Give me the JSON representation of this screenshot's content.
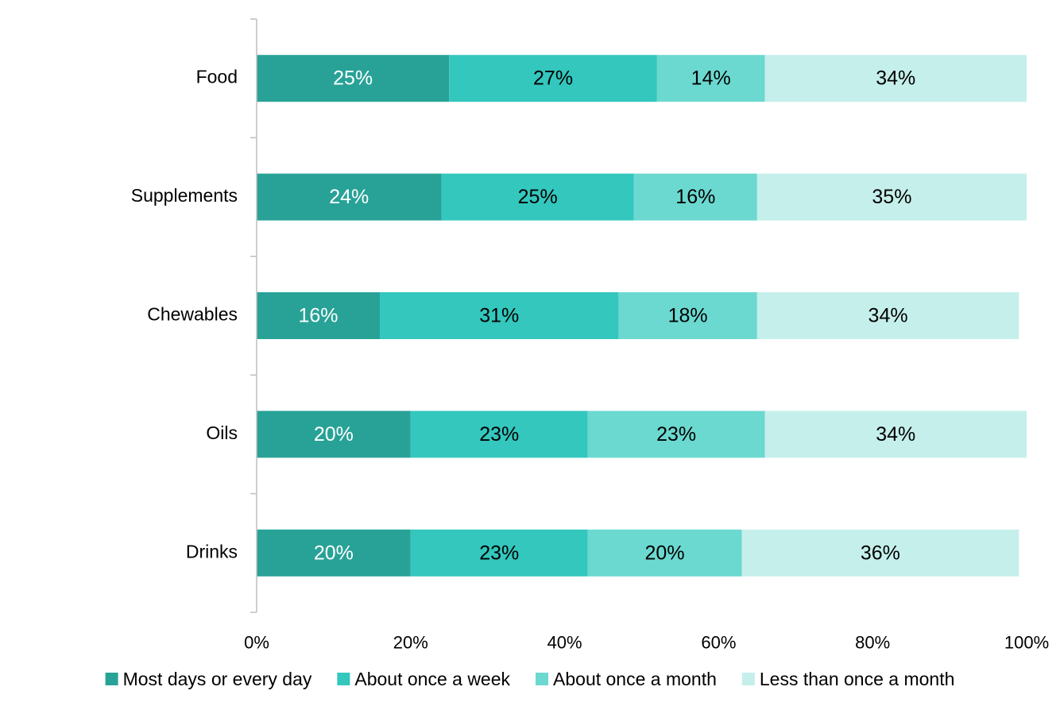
{
  "chart_data": {
    "type": "bar",
    "orientation": "horizontal",
    "stacked": true,
    "percent_stacked": true,
    "title": "",
    "xlabel": "",
    "ylabel": "",
    "xlim": [
      0,
      100
    ],
    "x_ticks": [
      "0%",
      "20%",
      "40%",
      "60%",
      "80%",
      "100%"
    ],
    "grid": false,
    "legend_position": "bottom",
    "categories": [
      "Food",
      "Supplements",
      "Chewables",
      "Oils",
      "Drinks"
    ],
    "series": [
      {
        "name": "Most days or every day",
        "color": "#28a297",
        "label_color": "#ffffff",
        "values": [
          25,
          24,
          16,
          20,
          20
        ],
        "labels": [
          "25%",
          "24%",
          "16%",
          "20%",
          "20%"
        ]
      },
      {
        "name": "About once a week",
        "color": "#33c7bd",
        "label_color": "#000000",
        "values": [
          27,
          25,
          31,
          23,
          23
        ],
        "labels": [
          "27%",
          "25%",
          "31%",
          "23%",
          "23%"
        ]
      },
      {
        "name": "About once a month",
        "color": "#6bd9d0",
        "label_color": "#000000",
        "values": [
          14,
          16,
          18,
          23,
          20
        ],
        "labels": [
          "14%",
          "16%",
          "18%",
          "23%",
          "20%"
        ]
      },
      {
        "name": "Less than once a month",
        "color": "#c5efeb",
        "label_color": "#000000",
        "values": [
          34,
          35,
          34,
          34,
          36
        ],
        "labels": [
          "34%",
          "35%",
          "34%",
          "34%",
          "36%"
        ]
      }
    ]
  }
}
